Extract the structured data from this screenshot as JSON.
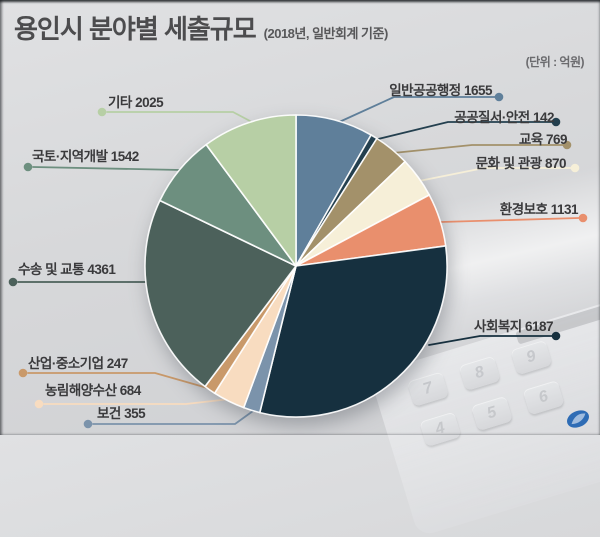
{
  "header": {
    "title": "용인시 분야별 세출규모",
    "subtitle": "(2018년, 일반회계 기준)",
    "unit_note": "(단위 : 억원)"
  },
  "chart_data": {
    "type": "pie",
    "title": "용인시 분야별 세출규모 (2018년, 일반회계 기준)",
    "unit": "억원",
    "start_angle_deg": 0,
    "direction": "clockwise",
    "legend_position": "callout-labels",
    "slices": [
      {
        "label": "일반공공행정",
        "value": 1655,
        "color": "#5f7f9a"
      },
      {
        "label": "공공질서·안전",
        "value": 142,
        "color": "#24404f"
      },
      {
        "label": "교육",
        "value": 769,
        "color": "#a3916a"
      },
      {
        "label": "문화 및 관광",
        "value": 870,
        "color": "#f6efd8"
      },
      {
        "label": "환경보호",
        "value": 1131,
        "color": "#e98f6d"
      },
      {
        "label": "사회복지",
        "value": 6187,
        "color": "#16303f"
      },
      {
        "label": "보건",
        "value": 355,
        "color": "#7b93ab"
      },
      {
        "label": "농림해양수산",
        "value": 684,
        "color": "#f8dcc0"
      },
      {
        "label": "산업·중소기업",
        "value": 247,
        "color": "#c9996a"
      },
      {
        "label": "수송 및 교통",
        "value": 4361,
        "color": "#4c615b"
      },
      {
        "label": "국토·지역개발",
        "value": 1542,
        "color": "#6d8f7f"
      },
      {
        "label": "기타",
        "value": 2025,
        "color": "#b7cfa5"
      }
    ]
  },
  "background": {
    "calculator_keys_row1": [
      "7",
      "8",
      "9"
    ],
    "calculator_keys_row2": [
      "4",
      "5",
      "6"
    ],
    "logo_color": "#2e6cb5"
  },
  "colors": {
    "background": "#d7d8da",
    "title": "#4c4c4e",
    "label_text": "#3a3a3c"
  }
}
